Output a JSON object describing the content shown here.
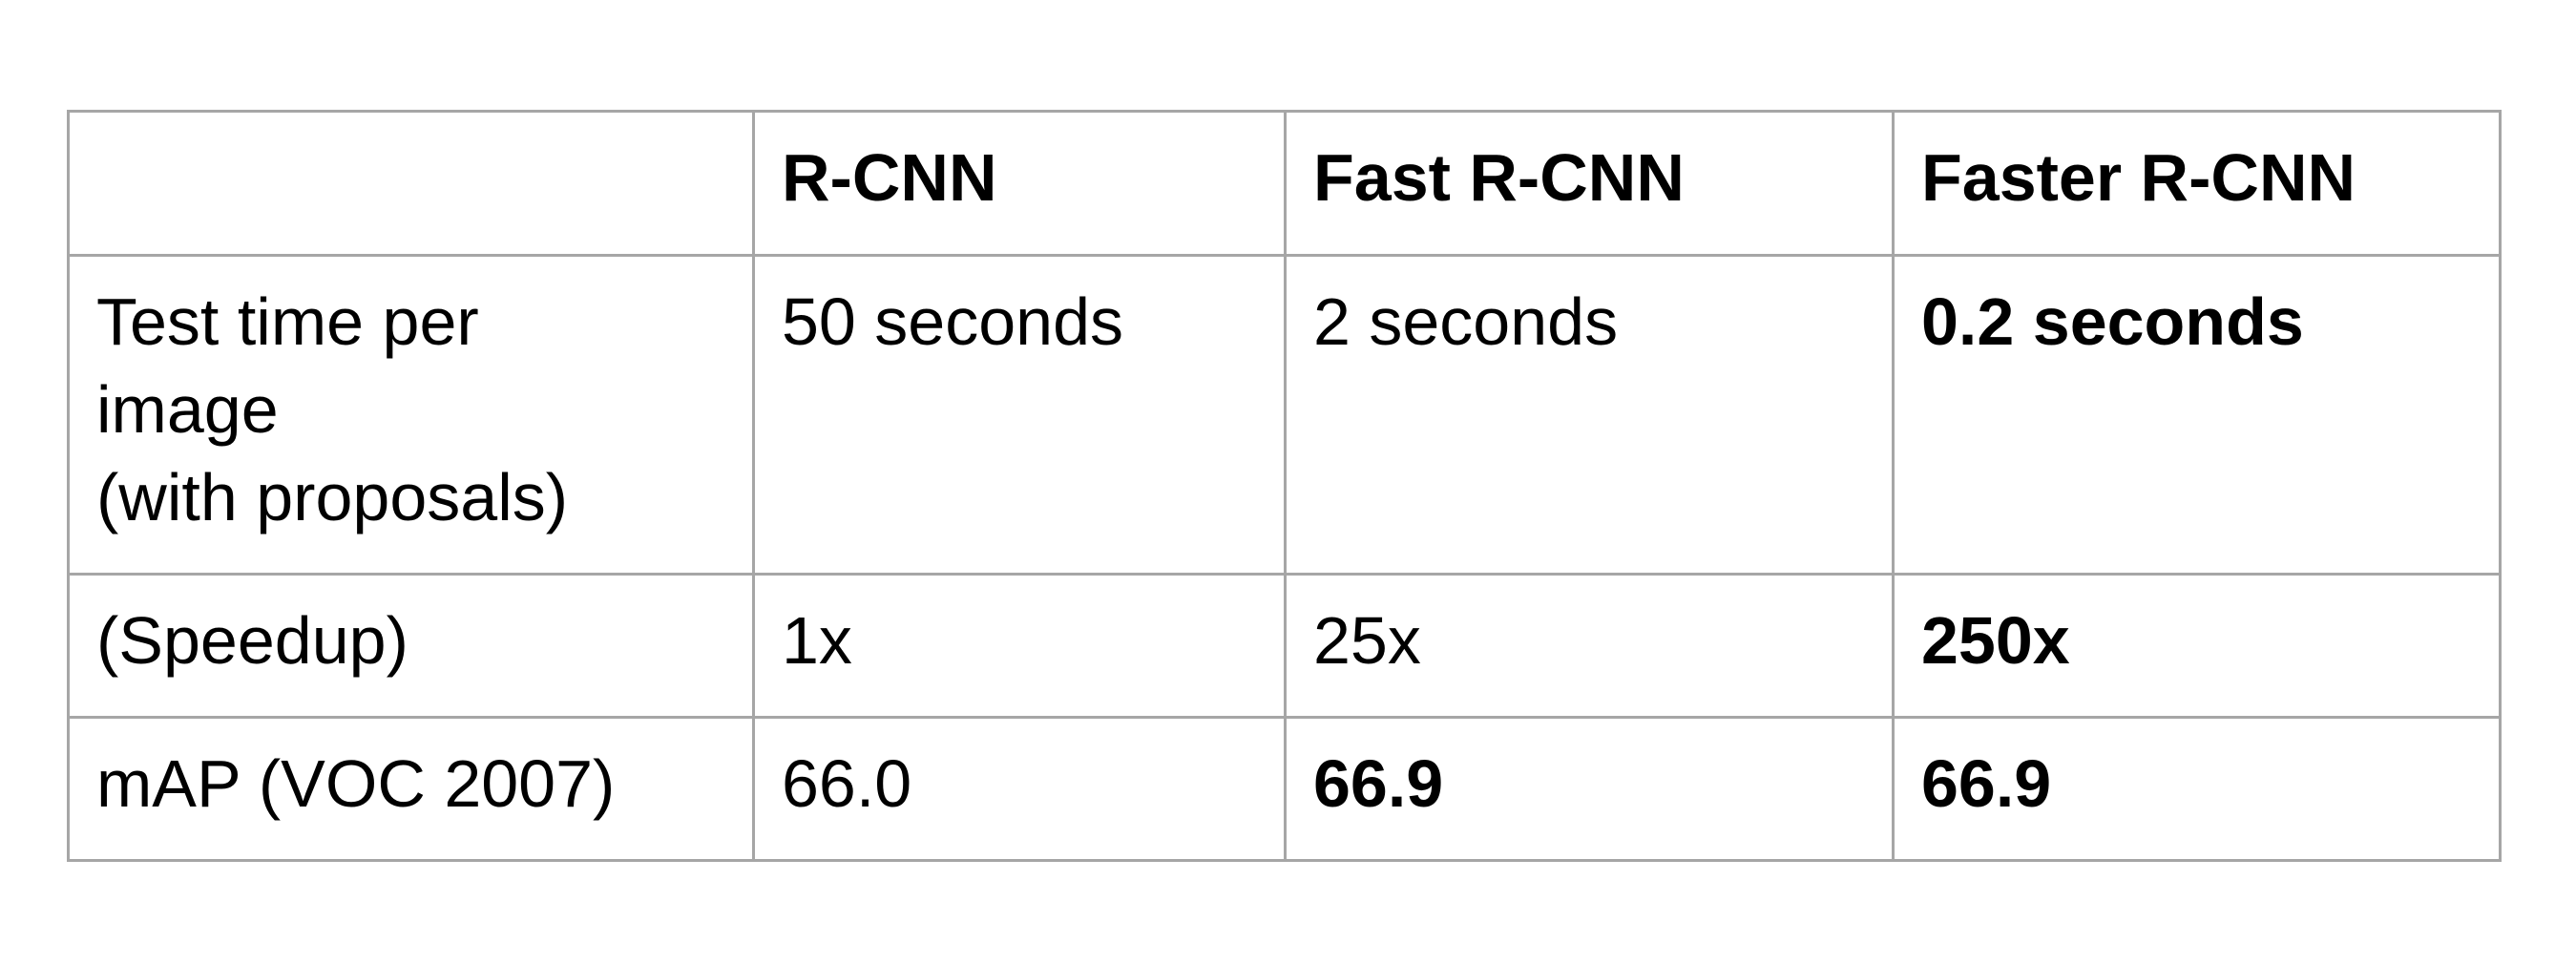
{
  "table": {
    "headers": [
      "",
      "R-CNN",
      "Fast R-CNN",
      "Faster R-CNN"
    ],
    "rows": [
      {
        "label_lines": [
          "Test time per",
          "image",
          "(with proposals)"
        ],
        "values": [
          "50 seconds",
          "2 seconds",
          "0.2 seconds"
        ],
        "bold": [
          false,
          false,
          true
        ]
      },
      {
        "label_lines": [
          "(Speedup)"
        ],
        "values": [
          "1x",
          "25x",
          "250x"
        ],
        "bold": [
          false,
          false,
          true
        ]
      },
      {
        "label_lines": [
          "mAP (VOC 2007)"
        ],
        "values": [
          "66.0",
          "66.9",
          "66.9"
        ],
        "bold": [
          false,
          true,
          true
        ]
      }
    ]
  }
}
